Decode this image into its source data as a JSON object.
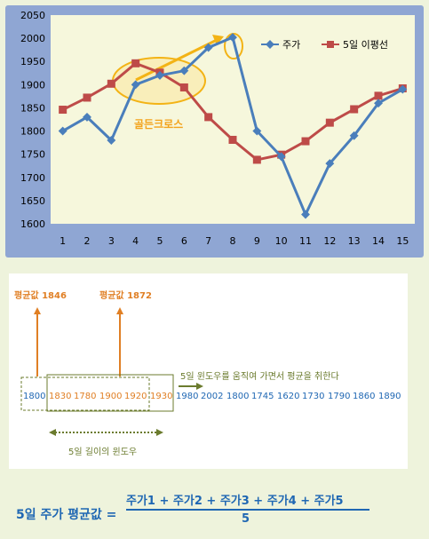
{
  "chart_data": {
    "type": "line",
    "x": [
      1,
      2,
      3,
      4,
      5,
      6,
      7,
      8,
      9,
      10,
      11,
      12,
      13,
      14,
      15
    ],
    "series": [
      {
        "name": "주가",
        "color": "#4a7ebb",
        "marker": "diamond",
        "values": [
          1800,
          1830,
          1780,
          1900,
          1920,
          1930,
          1980,
          2002,
          1800,
          1745,
          1620,
          1730,
          1790,
          1860,
          1890
        ]
      },
      {
        "name": "5일 이평선",
        "color": "#be4b48",
        "marker": "square",
        "values": [
          1846,
          1872,
          1902,
          1946,
          1926,
          1894,
          1830,
          1781,
          1738,
          1749,
          1778,
          1818,
          1847,
          1876,
          1892
        ]
      }
    ],
    "ylim": [
      1600,
      2050
    ],
    "yticks": [
      1600,
      1650,
      1700,
      1750,
      1800,
      1850,
      1900,
      1950,
      2000,
      2050
    ],
    "grid": false,
    "legend_position": "top-right",
    "annotation": "골든크로스",
    "plot_background": "#f6f7dc",
    "frame_background": "#8fa6d3",
    "annotation_color": "#f3a31b"
  },
  "window_diagram": {
    "avg1_label": "평균값 1846",
    "avg2_label": "평균값 1872",
    "caption_moving": "5일 윈도우를 움직여 가면서 평균을 취한다",
    "caption_window": "5일 길이의 윈도우",
    "values": [
      "1800",
      "1830",
      "1780",
      "1900",
      "1920",
      "1930",
      "1980",
      "2002",
      "1800",
      "1745",
      "1620",
      "1730",
      "1790",
      "1860",
      "1890"
    ],
    "colors": {
      "blue": "#1f67b3",
      "orange": "#e07f24",
      "olive": "#6b7b2e"
    }
  },
  "formula": {
    "lhs": "5일 주가 평균값 =",
    "numerator": "주가1 +  주가2 + 주가3 + 주가4 + 주가5",
    "denominator": "5"
  }
}
